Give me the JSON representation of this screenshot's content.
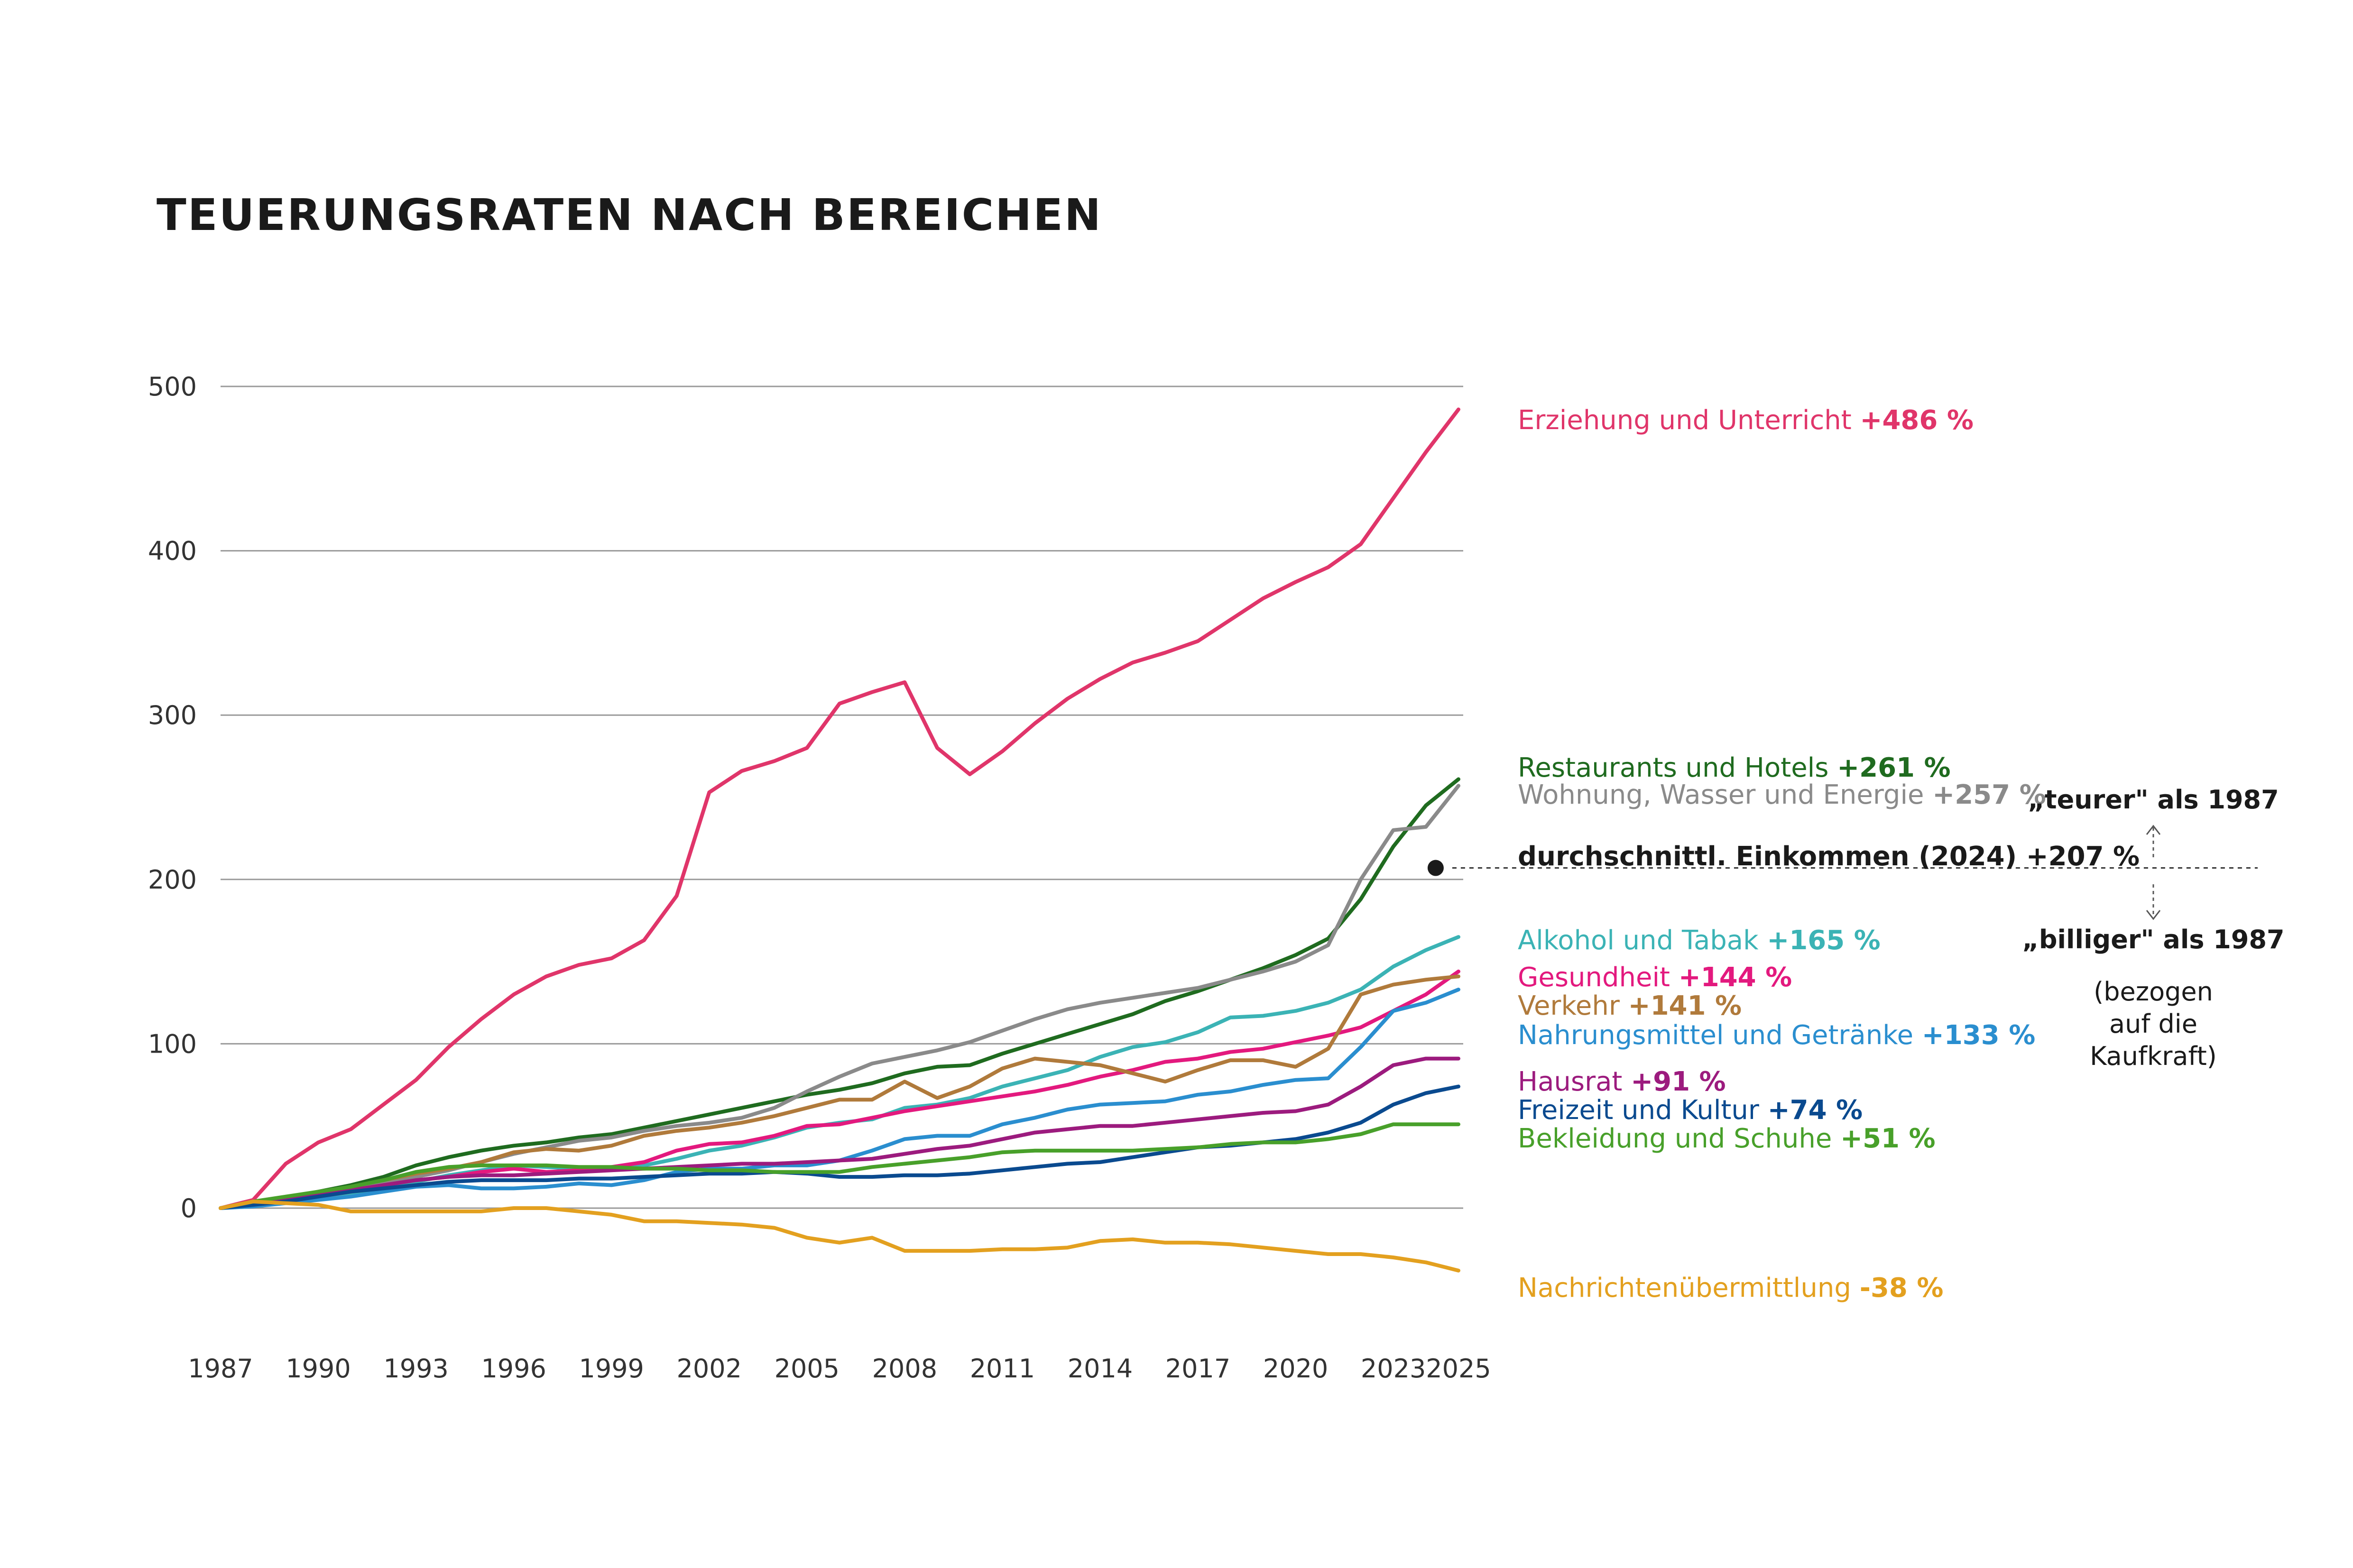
{
  "chart_data": {
    "type": "line",
    "title": "TEUERUNGSRATEN NACH BEREICHEN",
    "xlabel": "",
    "ylabel": "",
    "xlim": [
      1987,
      2025
    ],
    "ylim": [
      -60,
      500
    ],
    "x_ticks": [
      "1987",
      "1990",
      "1993",
      "1996",
      "1999",
      "2002",
      "2005",
      "2008",
      "2011",
      "2014",
      "2017",
      "2020",
      "2023",
      "2025"
    ],
    "y_ticks": [
      0,
      100,
      200,
      300,
      400,
      500
    ],
    "grid": true,
    "series": [
      {
        "name": "Erziehung und Unterricht",
        "value_label": "+486 %",
        "color": "#e0356a",
        "x": [
          1987,
          1988,
          1989,
          1990,
          1991,
          1992,
          1993,
          1994,
          1995,
          1996,
          1997,
          1998,
          1999,
          2000,
          2001,
          2002,
          2003,
          2004,
          2005,
          2006,
          2007,
          2008,
          2009,
          2010,
          2011,
          2012,
          2013,
          2014,
          2015,
          2016,
          2017,
          2018,
          2019,
          2020,
          2021,
          2022,
          2023,
          2024,
          2025
        ],
        "values": [
          0,
          5,
          27,
          40,
          48,
          63,
          78,
          98,
          115,
          130,
          141,
          148,
          152,
          163,
          190,
          253,
          266,
          272,
          280,
          307,
          314,
          320,
          280,
          264,
          278,
          295,
          310,
          322,
          332,
          338,
          345,
          358,
          371,
          381,
          390,
          404,
          432,
          460,
          486
        ]
      },
      {
        "name": "Restaurants und Hotels",
        "value_label": "+261 %",
        "color": "#1f6b1f",
        "x": [
          1987,
          1988,
          1989,
          1990,
          1991,
          1992,
          1993,
          1994,
          1995,
          1996,
          1997,
          1998,
          1999,
          2000,
          2001,
          2002,
          2003,
          2004,
          2005,
          2006,
          2007,
          2008,
          2009,
          2010,
          2011,
          2012,
          2013,
          2014,
          2015,
          2016,
          2017,
          2018,
          2019,
          2020,
          2021,
          2022,
          2023,
          2024,
          2025
        ],
        "values": [
          0,
          3,
          6,
          10,
          14,
          19,
          26,
          31,
          35,
          38,
          40,
          43,
          45,
          49,
          53,
          57,
          61,
          65,
          69,
          72,
          76,
          82,
          86,
          87,
          94,
          100,
          106,
          112,
          118,
          126,
          132,
          139,
          146,
          154,
          164,
          188,
          220,
          245,
          261
        ]
      },
      {
        "name": "Wohnung, Wasser und Energie",
        "value_label": "+257 %",
        "color": "#8a8a8a",
        "x": [
          1987,
          1988,
          1989,
          1990,
          1991,
          1992,
          1993,
          1994,
          1995,
          1996,
          1997,
          1998,
          1999,
          2000,
          2001,
          2002,
          2003,
          2004,
          2005,
          2006,
          2007,
          2008,
          2009,
          2010,
          2011,
          2012,
          2013,
          2014,
          2015,
          2016,
          2017,
          2018,
          2019,
          2020,
          2021,
          2022,
          2023,
          2024,
          2025
        ],
        "values": [
          0,
          3,
          5,
          8,
          11,
          15,
          19,
          23,
          28,
          33,
          37,
          41,
          43,
          47,
          50,
          52,
          55,
          61,
          71,
          80,
          88,
          92,
          96,
          101,
          108,
          115,
          121,
          125,
          128,
          131,
          134,
          139,
          144,
          150,
          160,
          200,
          230,
          232,
          257
        ]
      },
      {
        "name": "Alkohol und Tabak",
        "value_label": "+165 %",
        "color": "#3bb3b5",
        "x": [
          1987,
          1988,
          1989,
          1990,
          1991,
          1992,
          1993,
          1994,
          1995,
          1996,
          1997,
          1998,
          1999,
          2000,
          2001,
          2002,
          2003,
          2004,
          2005,
          2006,
          2007,
          2008,
          2009,
          2010,
          2011,
          2012,
          2013,
          2014,
          2015,
          2016,
          2017,
          2018,
          2019,
          2020,
          2021,
          2022,
          2023,
          2024,
          2025
        ],
        "values": [
          0,
          2,
          4,
          6,
          9,
          12,
          16,
          20,
          23,
          26,
          25,
          24,
          24,
          26,
          30,
          35,
          38,
          43,
          49,
          52,
          54,
          61,
          63,
          67,
          74,
          79,
          84,
          92,
          98,
          101,
          107,
          116,
          117,
          120,
          125,
          133,
          147,
          157,
          165
        ]
      },
      {
        "name": "Gesundheit",
        "value_label": "+144 %",
        "color": "#e3197e",
        "x": [
          1987,
          1988,
          1989,
          1990,
          1991,
          1992,
          1993,
          1994,
          1995,
          1996,
          1997,
          1998,
          1999,
          2000,
          2001,
          2002,
          2003,
          2004,
          2005,
          2006,
          2007,
          2008,
          2009,
          2010,
          2011,
          2012,
          2013,
          2014,
          2015,
          2016,
          2017,
          2018,
          2019,
          2020,
          2021,
          2022,
          2023,
          2024,
          2025
        ],
        "values": [
          0,
          2,
          4,
          7,
          10,
          14,
          17,
          19,
          22,
          24,
          22,
          23,
          25,
          28,
          35,
          39,
          40,
          44,
          50,
          51,
          55,
          59,
          62,
          65,
          68,
          71,
          75,
          80,
          84,
          89,
          91,
          95,
          97,
          101,
          105,
          110,
          120,
          130,
          144
        ]
      },
      {
        "name": "Verkehr",
        "value_label": "+141 %",
        "color": "#b07a3b",
        "x": [
          1987,
          1988,
          1989,
          1990,
          1991,
          1992,
          1993,
          1994,
          1995,
          1996,
          1997,
          1998,
          1999,
          2000,
          2001,
          2002,
          2003,
          2004,
          2005,
          2006,
          2007,
          2008,
          2009,
          2010,
          2011,
          2012,
          2013,
          2014,
          2015,
          2016,
          2017,
          2018,
          2019,
          2020,
          2021,
          2022,
          2023,
          2024,
          2025
        ],
        "values": [
          0,
          4,
          6,
          9,
          13,
          17,
          21,
          24,
          28,
          34,
          36,
          35,
          38,
          44,
          47,
          49,
          52,
          56,
          61,
          66,
          66,
          77,
          67,
          74,
          85,
          91,
          89,
          87,
          82,
          77,
          84,
          90,
          90,
          86,
          97,
          130,
          136,
          139,
          141
        ]
      },
      {
        "name": "Nahrungsmittel und Getränke",
        "value_label": "+133 %",
        "color": "#2a8ecf",
        "x": [
          1987,
          1988,
          1989,
          1990,
          1991,
          1992,
          1993,
          1994,
          1995,
          1996,
          1997,
          1998,
          1999,
          2000,
          2001,
          2002,
          2003,
          2004,
          2005,
          2006,
          2007,
          2008,
          2009,
          2010,
          2011,
          2012,
          2013,
          2014,
          2015,
          2016,
          2017,
          2018,
          2019,
          2020,
          2021,
          2022,
          2023,
          2024,
          2025
        ],
        "values": [
          0,
          1,
          3,
          5,
          7,
          10,
          13,
          14,
          12,
          12,
          13,
          15,
          14,
          17,
          22,
          24,
          24,
          26,
          26,
          29,
          35,
          42,
          44,
          44,
          51,
          55,
          60,
          63,
          64,
          65,
          69,
          71,
          75,
          78,
          79,
          98,
          120,
          125,
          133
        ]
      },
      {
        "name": "Hausrat",
        "value_label": "+91 %",
        "color": "#9c1b7e",
        "x": [
          1987,
          1988,
          1989,
          1990,
          1991,
          1992,
          1993,
          1994,
          1995,
          1996,
          1997,
          1998,
          1999,
          2000,
          2001,
          2002,
          2003,
          2004,
          2005,
          2006,
          2007,
          2008,
          2009,
          2010,
          2011,
          2012,
          2013,
          2014,
          2015,
          2016,
          2017,
          2018,
          2019,
          2020,
          2021,
          2022,
          2023,
          2024,
          2025
        ],
        "values": [
          0,
          3,
          5,
          8,
          11,
          14,
          17,
          19,
          20,
          20,
          21,
          22,
          23,
          24,
          25,
          26,
          27,
          27,
          28,
          29,
          30,
          33,
          36,
          38,
          42,
          46,
          48,
          50,
          50,
          52,
          54,
          56,
          58,
          59,
          63,
          74,
          87,
          91,
          91
        ]
      },
      {
        "name": "Freizeit und Kultur",
        "value_label": "+74 %",
        "color": "#0a4a8f",
        "x": [
          1987,
          1988,
          1989,
          1990,
          1991,
          1992,
          1993,
          1994,
          1995,
          1996,
          1997,
          1998,
          1999,
          2000,
          2001,
          2002,
          2003,
          2004,
          2005,
          2006,
          2007,
          2008,
          2009,
          2010,
          2011,
          2012,
          2013,
          2014,
          2015,
          2016,
          2017,
          2018,
          2019,
          2020,
          2021,
          2022,
          2023,
          2024,
          2025
        ],
        "values": [
          0,
          2,
          4,
          7,
          10,
          12,
          14,
          16,
          17,
          17,
          17,
          18,
          18,
          19,
          20,
          21,
          21,
          22,
          21,
          19,
          19,
          20,
          20,
          21,
          23,
          25,
          27,
          28,
          31,
          34,
          37,
          38,
          40,
          42,
          46,
          52,
          63,
          70,
          74
        ]
      },
      {
        "name": "Bekleidung und Schuhe",
        "value_label": "+51 %",
        "color": "#48a02a",
        "x": [
          1987,
          1988,
          1989,
          1990,
          1991,
          1992,
          1993,
          1994,
          1995,
          1996,
          1997,
          1998,
          1999,
          2000,
          2001,
          2002,
          2003,
          2004,
          2005,
          2006,
          2007,
          2008,
          2009,
          2010,
          2011,
          2012,
          2013,
          2014,
          2015,
          2016,
          2017,
          2018,
          2019,
          2020,
          2021,
          2022,
          2023,
          2024,
          2025
        ],
        "values": [
          0,
          4,
          7,
          10,
          13,
          17,
          22,
          25,
          26,
          26,
          26,
          25,
          25,
          24,
          24,
          23,
          23,
          22,
          22,
          22,
          25,
          27,
          29,
          31,
          34,
          35,
          35,
          35,
          35,
          36,
          37,
          39,
          40,
          40,
          42,
          45,
          51,
          51,
          51
        ]
      },
      {
        "name": "Nachrichtenübermittlung",
        "value_label": "-38 %",
        "color": "#e3a01f",
        "x": [
          1987,
          1988,
          1989,
          1990,
          1991,
          1992,
          1993,
          1994,
          1995,
          1996,
          1997,
          1998,
          1999,
          2000,
          2001,
          2002,
          2003,
          2004,
          2005,
          2006,
          2007,
          2008,
          2009,
          2010,
          2011,
          2012,
          2013,
          2014,
          2015,
          2016,
          2017,
          2018,
          2019,
          2020,
          2021,
          2022,
          2023,
          2024,
          2025
        ],
        "values": [
          0,
          4,
          3,
          2,
          -2,
          -2,
          -2,
          -2,
          -2,
          0,
          0,
          -2,
          -4,
          -8,
          -8,
          -9,
          -10,
          -12,
          -18,
          -21,
          -18,
          -26,
          -26,
          -26,
          -25,
          -25,
          -24,
          -20,
          -19,
          -21,
          -21,
          -22,
          -24,
          -26,
          -28,
          -28,
          -30,
          -33,
          -38
        ]
      }
    ],
    "annotations": {
      "income_label": "durchschnittl. Einkommen (2024) +207 %",
      "income_value": 207,
      "income_year": 2024.3,
      "teurer": "„teurer\" als 1987",
      "billiger": "„billiger\" als 1987",
      "note_line1": "(bezogen",
      "note_line2": "auf die",
      "note_line3": "Kaufkraft)"
    }
  }
}
